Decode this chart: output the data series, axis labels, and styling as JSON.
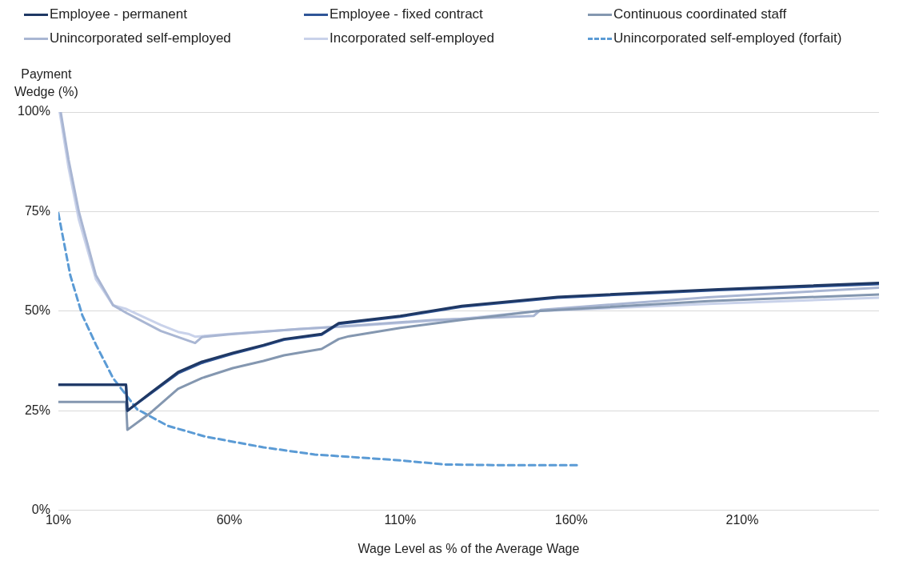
{
  "chart_data": {
    "type": "line",
    "xlabel": "Wage Level as % of the Average Wage",
    "ylabel": "Payment Wedge (%)",
    "xlim": [
      10,
      250
    ],
    "xticks": [
      {
        "value": 10,
        "label": "10%"
      },
      {
        "value": 60,
        "label": "60%"
      },
      {
        "value": 110,
        "label": "110%"
      },
      {
        "value": 160,
        "label": "160%"
      },
      {
        "value": 210,
        "label": "210%"
      }
    ],
    "ylim": [
      0,
      100
    ],
    "yticks": [
      {
        "value": 0,
        "label": "0%"
      },
      {
        "value": 25,
        "label": "25%"
      },
      {
        "value": 50,
        "label": "50%"
      },
      {
        "value": 75,
        "label": "75%"
      },
      {
        "value": 100,
        "label": "100%"
      }
    ],
    "grid": "y",
    "legend": "top",
    "marker": "none",
    "series": [
      {
        "name": "Employee - permanent",
        "color": "#1f3864",
        "x": [
          10,
          29.8,
          30.2,
          37,
          45,
          52,
          61,
          70,
          76,
          87,
          92,
          100,
          110,
          128,
          156,
          203,
          250
        ],
        "values": [
          31.5,
          31.5,
          25,
          29.5,
          34.7,
          37.3,
          39.5,
          41.5,
          43,
          44.3,
          47,
          47.8,
          48.8,
          51.3,
          53.6,
          55.5,
          57.1
        ]
      },
      {
        "name": "Employee - fixed contract",
        "color": "#2f5597",
        "x": [
          10,
          29.8,
          30.2,
          37,
          45,
          52,
          61,
          70,
          76,
          87,
          92,
          100,
          110,
          128,
          156,
          203,
          250
        ],
        "values": [
          31.5,
          31.5,
          25,
          29.3,
          34.4,
          37,
          39.3,
          41.3,
          42.8,
          44.1,
          46.8,
          47.6,
          48.6,
          51.1,
          53.4,
          55.3,
          56.8
        ]
      },
      {
        "name": "Continuous coordinated staff",
        "color": "#8497b0",
        "x": [
          10,
          29.8,
          30.2,
          37,
          45,
          52,
          61,
          70,
          76,
          87,
          92,
          95,
          110,
          127,
          150,
          200,
          250
        ],
        "values": [
          27.2,
          27.2,
          20.2,
          24.5,
          30.5,
          33.2,
          35.7,
          37.5,
          38.9,
          40.5,
          43,
          43.7,
          45.8,
          47.7,
          50,
          52.5,
          54.2
        ]
      },
      {
        "name": "Unincorporated self-employed",
        "color": "#a9b6d3",
        "x": [
          10.7,
          13,
          16,
          21,
          26,
          30,
          40,
          50,
          52,
          60,
          80,
          95,
          120,
          149,
          151,
          200,
          250
        ],
        "values": [
          100,
          88,
          75,
          59,
          51.5,
          49.5,
          45,
          42,
          43.5,
          44.2,
          45.5,
          46.3,
          47.8,
          48.8,
          50.3,
          53.5,
          55.9
        ]
      },
      {
        "name": "Incorporated self-employed",
        "color": "#c9d2ea",
        "x": [
          10.4,
          13,
          16,
          21,
          26,
          30,
          40,
          45,
          48,
          50,
          60,
          80,
          95,
          127,
          150,
          200,
          250
        ],
        "values": [
          100,
          86,
          73,
          58,
          51.5,
          50.5,
          46.5,
          44.8,
          44.3,
          43.6,
          44.3,
          45.5,
          46.2,
          48,
          50,
          51.8,
          53.4
        ]
      },
      {
        "name": "Unincorporated self-employed (forfait)",
        "color": "#5b9bd5",
        "line_style": "dashed",
        "x": [
          10,
          13.5,
          17,
          21,
          26,
          33,
          42,
          53,
          70,
          85,
          109,
          123,
          140,
          162
        ],
        "values": [
          74.6,
          59,
          49,
          41.6,
          33.2,
          25.4,
          21.2,
          18.5,
          15.8,
          14,
          12.6,
          11.5,
          11.3,
          11.3
        ]
      }
    ]
  }
}
